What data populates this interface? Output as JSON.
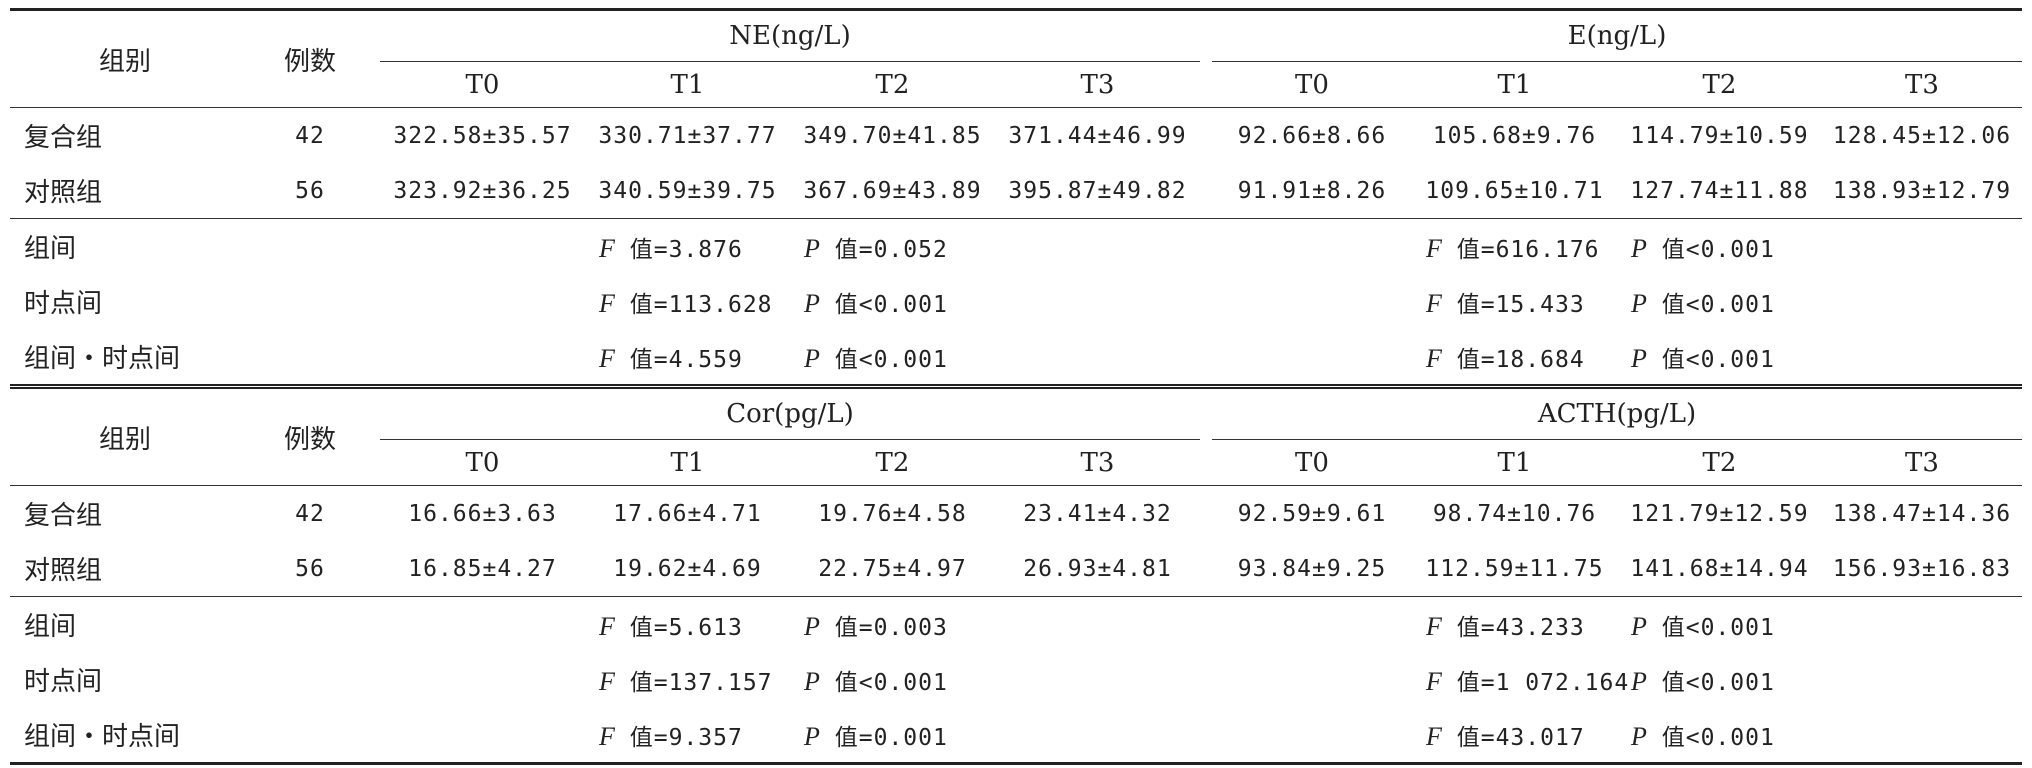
{
  "tables": [
    {
      "col_group": "组别",
      "col_n": "例数",
      "left_measure": "NE(ng/L)",
      "right_measure": "E(ng/L)",
      "time_points": [
        "T0",
        "T1",
        "T2",
        "T3"
      ],
      "rows": [
        {
          "group": "复合组",
          "n": "42",
          "left": [
            "322.58±35.57",
            "330.71±37.77",
            "349.70±41.85",
            "371.44±46.99"
          ],
          "right": [
            "92.66±8.66",
            "105.68±9.76",
            "114.79±10.59",
            "128.45±12.06"
          ]
        },
        {
          "group": "对照组",
          "n": "56",
          "left": [
            "323.92±36.25",
            "340.59±39.75",
            "367.69±43.89",
            "395.87±49.82"
          ],
          "right": [
            "91.91±8.26",
            "109.65±10.71",
            "127.74±11.88",
            "138.93±12.79"
          ]
        }
      ],
      "stats": [
        {
          "label": "组间",
          "left_f": "F 值=3.876",
          "left_p": "P 值=0.052",
          "right_f": "F 值=616.176",
          "right_p": "P 值<0.001"
        },
        {
          "label": "时点间",
          "left_f": "F 值=113.628",
          "left_p": "P 值<0.001",
          "right_f": "F 值=15.433",
          "right_p": "P 值<0.001"
        },
        {
          "label": "组间・时点间",
          "left_f": "F 值=4.559",
          "left_p": "P 值<0.001",
          "right_f": "F 值=18.684",
          "right_p": "P 值<0.001"
        }
      ]
    },
    {
      "col_group": "组别",
      "col_n": "例数",
      "left_measure": "Cor(pg/L)",
      "right_measure": "ACTH(pg/L)",
      "time_points": [
        "T0",
        "T1",
        "T2",
        "T3"
      ],
      "rows": [
        {
          "group": "复合组",
          "n": "42",
          "left": [
            "16.66±3.63",
            "17.66±4.71",
            "19.76±4.58",
            "23.41±4.32"
          ],
          "right": [
            "92.59±9.61",
            "98.74±10.76",
            "121.79±12.59",
            "138.47±14.36"
          ]
        },
        {
          "group": "对照组",
          "n": "56",
          "left": [
            "16.85±4.27",
            "19.62±4.69",
            "22.75±4.97",
            "26.93±4.81"
          ],
          "right": [
            "93.84±9.25",
            "112.59±11.75",
            "141.68±14.94",
            "156.93±16.83"
          ]
        }
      ],
      "stats": [
        {
          "label": "组间",
          "left_f": "F 值=5.613",
          "left_p": "P 值=0.003",
          "right_f": "F 值=43.233",
          "right_p": "P 值<0.001"
        },
        {
          "label": "时点间",
          "left_f": "F 值=137.157",
          "left_p": "P 值<0.001",
          "right_f": "F 值=1 072.164",
          "right_p": "P 值<0.001"
        },
        {
          "label": "组间・时点间",
          "left_f": "F 值=9.357",
          "left_p": "P 值=0.001",
          "right_f": "F 值=43.017",
          "right_p": "P 值<0.001"
        }
      ]
    }
  ]
}
